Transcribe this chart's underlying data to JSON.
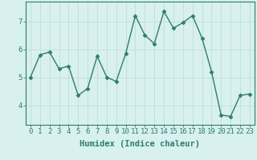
{
  "x": [
    0,
    1,
    2,
    3,
    4,
    5,
    6,
    7,
    8,
    9,
    10,
    11,
    12,
    13,
    14,
    15,
    16,
    17,
    18,
    19,
    20,
    21,
    22,
    23
  ],
  "y": [
    5.0,
    5.8,
    5.9,
    5.3,
    5.4,
    4.35,
    4.6,
    5.75,
    5.0,
    4.85,
    5.85,
    7.2,
    6.5,
    6.2,
    7.35,
    6.75,
    6.95,
    7.2,
    6.4,
    5.2,
    3.65,
    3.6,
    4.35,
    4.4
  ],
  "line_color": "#2d7d74",
  "marker": "D",
  "marker_size": 2.5,
  "bg_color": "#d8f0ee",
  "grid_color": "#c0deda",
  "xlabel": "Humidex (Indice chaleur)",
  "ylim": [
    3.3,
    7.7
  ],
  "xlim": [
    -0.5,
    23.5
  ],
  "yticks": [
    4,
    5,
    6,
    7
  ],
  "xticks": [
    0,
    1,
    2,
    3,
    4,
    5,
    6,
    7,
    8,
    9,
    10,
    11,
    12,
    13,
    14,
    15,
    16,
    17,
    18,
    19,
    20,
    21,
    22,
    23
  ],
  "xlabel_fontsize": 7.5,
  "tick_fontsize": 6.5,
  "line_width": 1.0
}
